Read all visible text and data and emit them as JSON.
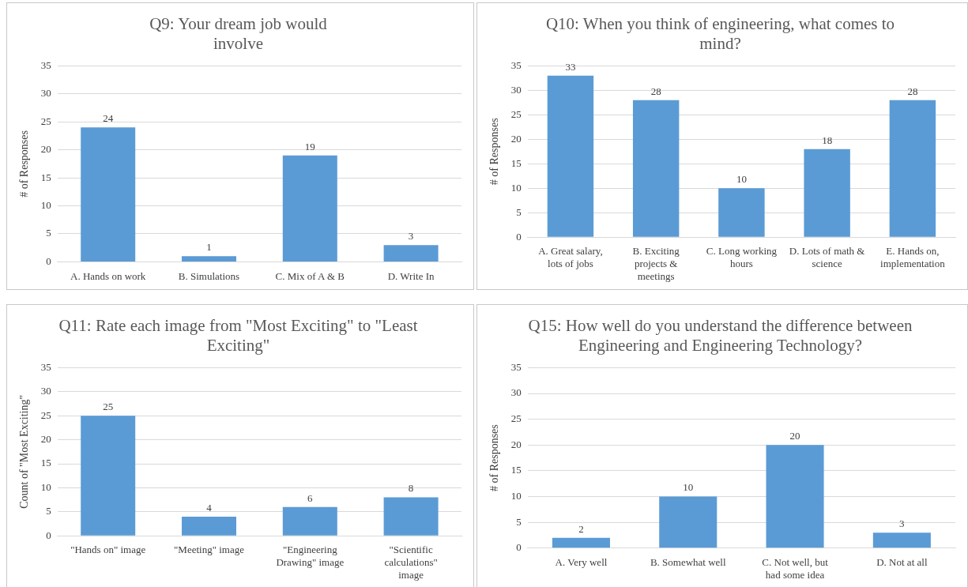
{
  "chart_data": [
    {
      "type": "bar",
      "title": "Q9: Your dream job would involve",
      "ylabel": "# of Responses",
      "categories": [
        "A. Hands on work",
        "B. Simulations",
        "C. Mix of A & B",
        "D. Write In"
      ],
      "values": [
        24,
        1,
        19,
        3
      ],
      "color": "#5b9bd5",
      "ylim": [
        0,
        35
      ],
      "yticks": [
        0,
        5,
        10,
        15,
        20,
        25,
        30,
        35
      ],
      "grid": "y",
      "data_labels": true,
      "legend": false
    },
    {
      "type": "bar",
      "title": "Q10: When you think of engineering, what comes to mind?",
      "ylabel": "# of Responses",
      "categories": [
        "A. Great salary, lots of jobs",
        "B. Exciting projects & meetings",
        "C. Long working hours",
        "D. Lots of math & science",
        "E. Hands on, implementation"
      ],
      "values": [
        33,
        28,
        10,
        18,
        28
      ],
      "color": "#5b9bd5",
      "ylim": [
        0,
        35
      ],
      "yticks": [
        0,
        5,
        10,
        15,
        20,
        25,
        30,
        35
      ],
      "grid": "y",
      "data_labels": true,
      "legend": false
    },
    {
      "type": "bar",
      "title": "Q11: Rate each image from \"Most Exciting\" to \"Least Exciting\"",
      "ylabel": "Count of \"Most Exciting\"",
      "categories": [
        "\"Hands on\" image",
        "\"Meeting\" image",
        "\"Engineering Drawing\" image",
        "\"Scientific calculations\" image"
      ],
      "values": [
        25,
        4,
        6,
        8
      ],
      "color": "#5b9bd5",
      "ylim": [
        0,
        35
      ],
      "yticks": [
        0,
        5,
        10,
        15,
        20,
        25,
        30,
        35
      ],
      "grid": "y",
      "data_labels": true,
      "legend": false
    },
    {
      "type": "bar",
      "title": "Q15: How well do you understand the difference between Engineering and Engineering Technology?",
      "ylabel": "# of Responses",
      "categories": [
        "A. Very well",
        "B. Somewhat well",
        "C. Not well, but had some idea",
        "D. Not at all"
      ],
      "values": [
        2,
        10,
        20,
        3
      ],
      "color": "#5b9bd5",
      "ylim": [
        0,
        35
      ],
      "yticks": [
        0,
        5,
        10,
        15,
        20,
        25,
        30,
        35
      ],
      "grid": "y",
      "data_labels": true,
      "legend": false
    }
  ]
}
